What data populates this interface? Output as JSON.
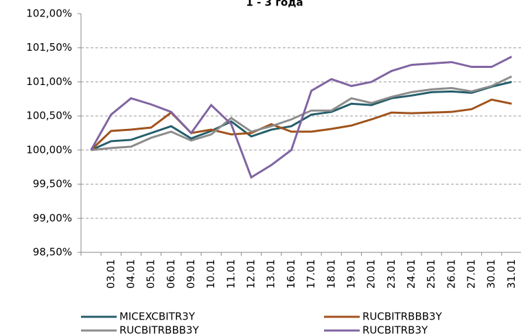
{
  "chart_data": {
    "type": "line",
    "title": "1 - 3 года",
    "categories": [
      null,
      "03.01",
      "04.01",
      "05.01",
      "06.01",
      "09.01",
      "10.01",
      "11.01",
      "12.01",
      "13.01",
      "16.01",
      "17.01",
      "18.01",
      "19.01",
      "20.01",
      "23.01",
      "24.01",
      "25.01",
      "26.01",
      "27.01",
      "30.01",
      "31.01"
    ],
    "series": [
      {
        "name": "MICEXCBITR3Y",
        "color": "#255e6b",
        "values": [
          100.0,
          100.13,
          100.15,
          100.25,
          100.35,
          100.17,
          100.28,
          100.42,
          100.2,
          100.3,
          100.35,
          100.52,
          100.56,
          100.68,
          100.66,
          100.76,
          100.8,
          100.85,
          100.86,
          100.84,
          100.93,
          101.0
        ]
      },
      {
        "name": "RUCBITRBBB3Y",
        "color": "#a0521b",
        "values": [
          100.0,
          100.28,
          100.3,
          100.33,
          100.55,
          100.25,
          100.3,
          100.23,
          100.25,
          100.38,
          100.27,
          100.27,
          100.31,
          100.36,
          100.45,
          100.55,
          100.54,
          100.55,
          100.56,
          100.6,
          100.74,
          100.68
        ]
      },
      {
        "name": "RUCBITRBBB3Y",
        "color": "#8c8c8c",
        "values": [
          100.0,
          100.03,
          100.05,
          100.18,
          100.27,
          100.14,
          100.23,
          100.47,
          100.27,
          100.35,
          100.45,
          100.58,
          100.58,
          100.76,
          100.69,
          100.78,
          100.85,
          100.89,
          100.91,
          100.86,
          100.94,
          101.08
        ]
      },
      {
        "name": "RUCBITRB3Y",
        "color": "#8064a2",
        "values": [
          100.0,
          100.52,
          100.76,
          100.67,
          100.56,
          100.25,
          100.66,
          100.38,
          99.6,
          99.78,
          100.0,
          100.87,
          101.04,
          100.94,
          101.0,
          101.16,
          101.25,
          101.27,
          101.29,
          101.22,
          101.22,
          101.37
        ]
      }
    ],
    "ylim": [
      98.5,
      102
    ],
    "yticks": [
      {
        "value": 98.5,
        "label": "98,50%"
      },
      {
        "value": 99,
        "label": "99,00%"
      },
      {
        "value": 99.5,
        "label": "99,50%"
      },
      {
        "value": 100,
        "label": "100,00%"
      },
      {
        "value": 100.5,
        "label": "100,50%"
      },
      {
        "value": 101,
        "label": "101,00%"
      },
      {
        "value": 101.5,
        "label": "101,50%"
      },
      {
        "value": 102,
        "label": "102,00%"
      }
    ],
    "grid": true
  }
}
